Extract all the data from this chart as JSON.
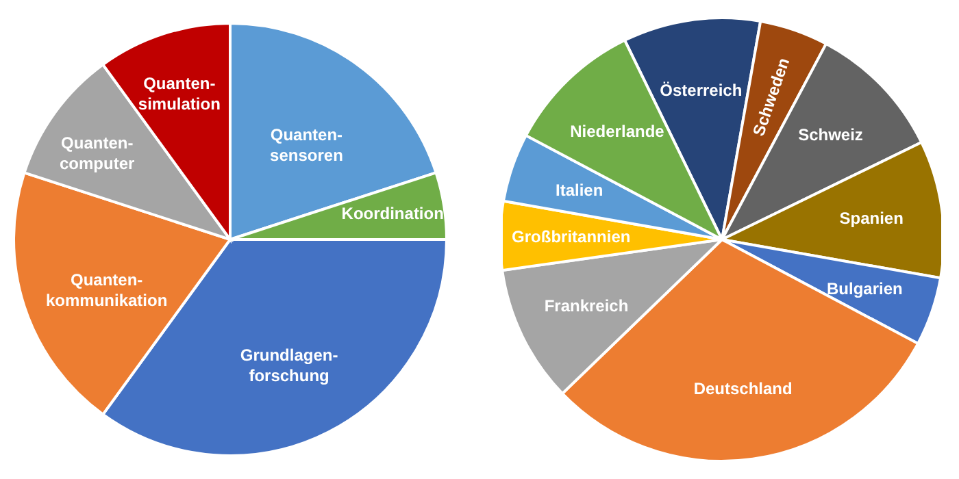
{
  "chart_data": [
    {
      "type": "pie",
      "categories": [
        "Quanten-sensoren",
        "Koordination",
        "Grundlagen-forschung",
        "Quanten-kommunikation",
        "Quanten-computer",
        "Quanten-simulation"
      ],
      "values": [
        20,
        5,
        35,
        20,
        10,
        10
      ],
      "colors": [
        "#5b9bd5",
        "#70ad47",
        "#4472c4",
        "#ed7d31",
        "#a5a5a5",
        "#c00000"
      ]
    },
    {
      "type": "pie",
      "categories": [
        "Österreich",
        "Schweden",
        "Schweiz",
        "Spanien",
        "Bulgarien",
        "Deutschland",
        "Frankreich",
        "Großbritannien",
        "Italien",
        "Niederlande"
      ],
      "values": [
        10,
        5,
        10,
        10,
        5,
        30,
        10,
        5,
        5,
        10
      ],
      "colors": [
        "#264478",
        "#9e480e",
        "#636363",
        "#997300",
        "#4472c4",
        "#ed7d31",
        "#a5a5a5",
        "#ffc000",
        "#5b9bd5",
        "#70ad47"
      ]
    }
  ]
}
